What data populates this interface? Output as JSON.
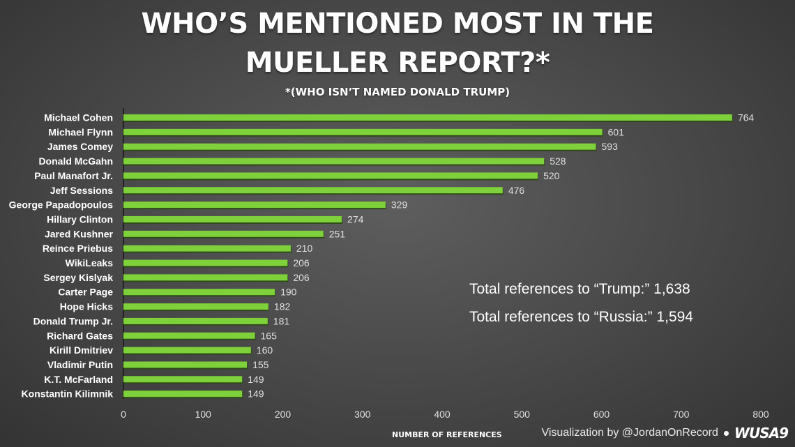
{
  "title_lines": [
    "WHO’S MENTIONED MOST IN THE",
    "MUELLER REPORT?*"
  ],
  "subtitle": "*(WHO ISN’T NAMED DONALD TRUMP)",
  "totals": [
    "Total references to “Trump:” 1,638",
    "Total references to “Russia:” 1,594"
  ],
  "footer": {
    "credit": "Visualization by @JordanOnRecord",
    "logo": "WUSA9"
  },
  "colors": {
    "bar": "#7ed13a",
    "bar_shadow": "#2f4a18",
    "background": "#4a4a4a",
    "text": "#ffffff"
  },
  "chart_data": {
    "type": "bar",
    "orientation": "horizontal",
    "xlabel": "NUMBER OF REFERENCES",
    "xlim": [
      0,
      800
    ],
    "xticks": [
      0,
      100,
      200,
      300,
      400,
      500,
      600,
      700,
      800
    ],
    "categories": [
      "Michael Cohen",
      "Michael Flynn",
      "James Comey",
      "Donald McGahn",
      "Paul Manafort Jr.",
      "Jeff Sessions",
      "George Papadopoulos",
      "Hillary Clinton",
      "Jared Kushner",
      "Reince Priebus",
      "WikiLeaks",
      "Sergey Kislyak",
      "Carter Page",
      "Hope Hicks",
      "Donald Trump Jr.",
      "Richard Gates",
      "Kirill Dmitriev",
      "Vladimir Putin",
      "K.T. McFarland",
      "Konstantin Kilimnik"
    ],
    "values": [
      764,
      601,
      593,
      528,
      520,
      476,
      329,
      274,
      251,
      210,
      206,
      206,
      190,
      182,
      181,
      165,
      160,
      155,
      149,
      149
    ],
    "grid": false,
    "legend": "none"
  }
}
